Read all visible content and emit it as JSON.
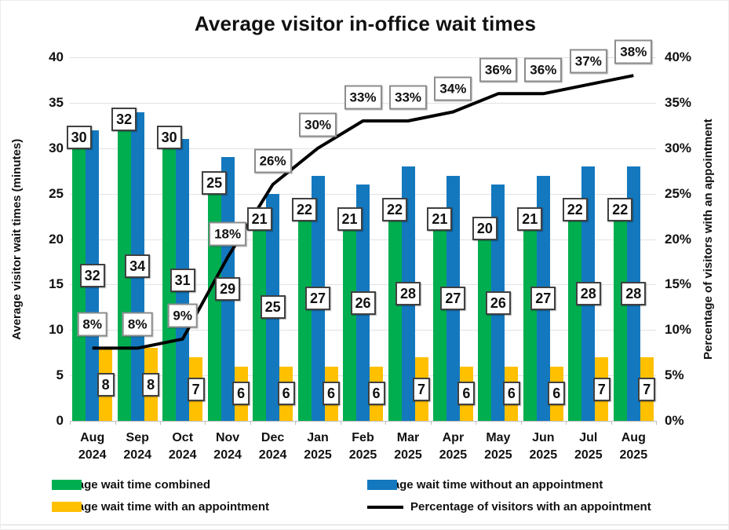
{
  "title": "Average visitor in-office wait times",
  "left_axis": {
    "title": "Average visitor wait times (minutes)",
    "ticks": [
      "0",
      "5",
      "10",
      "15",
      "20",
      "25",
      "30",
      "35",
      "40"
    ]
  },
  "right_axis": {
    "title": "Percentage of visitors with an appointment",
    "ticks": [
      "0%",
      "5%",
      "10%",
      "15%",
      "20%",
      "25%",
      "30%",
      "35%",
      "40%"
    ]
  },
  "chart_data": {
    "type": "bar",
    "subtype": "grouped-bars-with-line-overlay",
    "title": "Average visitor in-office wait times",
    "categories": [
      {
        "month": "Aug",
        "year": "2024"
      },
      {
        "month": "Sep",
        "year": "2024"
      },
      {
        "month": "Oct",
        "year": "2024"
      },
      {
        "month": "Nov",
        "year": "2024"
      },
      {
        "month": "Dec",
        "year": "2024"
      },
      {
        "month": "Jan",
        "year": "2025"
      },
      {
        "month": "Feb",
        "year": "2025"
      },
      {
        "month": "Mar",
        "year": "2025"
      },
      {
        "month": "Apr",
        "year": "2025"
      },
      {
        "month": "May",
        "year": "2025"
      },
      {
        "month": "Jun",
        "year": "2025"
      },
      {
        "month": "Jul",
        "year": "2025"
      },
      {
        "month": "Aug",
        "year": "2025"
      }
    ],
    "series": [
      {
        "name": "Average wait time combined",
        "type": "bar",
        "color": "#00AE50",
        "values": [
          30,
          32,
          30,
          25,
          21,
          22,
          21,
          22,
          21,
          20,
          21,
          22,
          22
        ]
      },
      {
        "name": "Average wait time without an appointment",
        "type": "bar",
        "color": "#1478BE",
        "values": [
          32,
          34,
          31,
          29,
          25,
          27,
          26,
          28,
          27,
          26,
          27,
          28,
          28
        ]
      },
      {
        "name": "Average wait time with an appointment",
        "type": "bar",
        "color": "#FFC000",
        "values": [
          8,
          8,
          7,
          6,
          6,
          6,
          6,
          7,
          6,
          6,
          6,
          7,
          7
        ]
      },
      {
        "name": "Percentage of visitors with an appointment",
        "type": "line",
        "color": "#000000",
        "axis": "right",
        "label_suffix": "%",
        "values": [
          8,
          8,
          9,
          18,
          26,
          30,
          33,
          33,
          34,
          36,
          36,
          37,
          38
        ]
      }
    ],
    "ylim": [
      0,
      40
    ],
    "ytick_step": 5,
    "grid": true,
    "legend_position": "bottom"
  },
  "legend": {
    "columns": [
      [
        0,
        2
      ],
      [
        1,
        3
      ]
    ]
  }
}
